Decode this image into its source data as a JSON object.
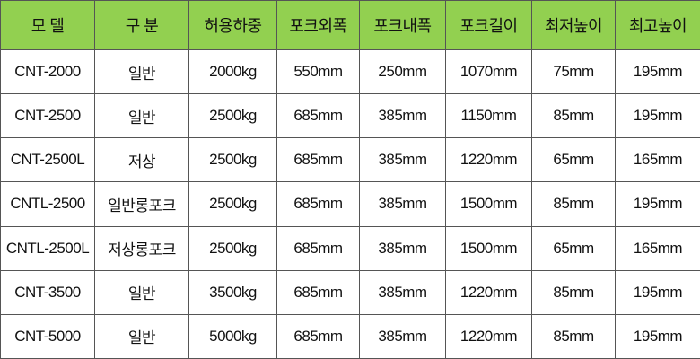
{
  "table": {
    "header": [
      "모 델",
      "구 분",
      "허용하중",
      "포크외폭",
      "포크내폭",
      "포크길이",
      "최저높이",
      "최고높이"
    ],
    "rows": [
      [
        "CNT-2000",
        "일반",
        "2000kg",
        "550mm",
        "250mm",
        "1070mm",
        "75mm",
        "195mm"
      ],
      [
        "CNT-2500",
        "일반",
        "2500kg",
        "685mm",
        "385mm",
        "1150mm",
        "85mm",
        "195mm"
      ],
      [
        "CNT-2500L",
        "저상",
        "2500kg",
        "685mm",
        "385mm",
        "1220mm",
        "65mm",
        "165mm"
      ],
      [
        "CNTL-2500",
        "일반롱포크",
        "2500kg",
        "685mm",
        "385mm",
        "1500mm",
        "85mm",
        "195mm"
      ],
      [
        "CNTL-2500L",
        "저상롱포크",
        "2500kg",
        "685mm",
        "385mm",
        "1500mm",
        "65mm",
        "165mm"
      ],
      [
        "CNT-3500",
        "일반",
        "3500kg",
        "685mm",
        "385mm",
        "1220mm",
        "85mm",
        "195mm"
      ],
      [
        "CNT-5000",
        "일반",
        "5000kg",
        "685mm",
        "385mm",
        "1220mm",
        "85mm",
        "195mm"
      ]
    ]
  }
}
